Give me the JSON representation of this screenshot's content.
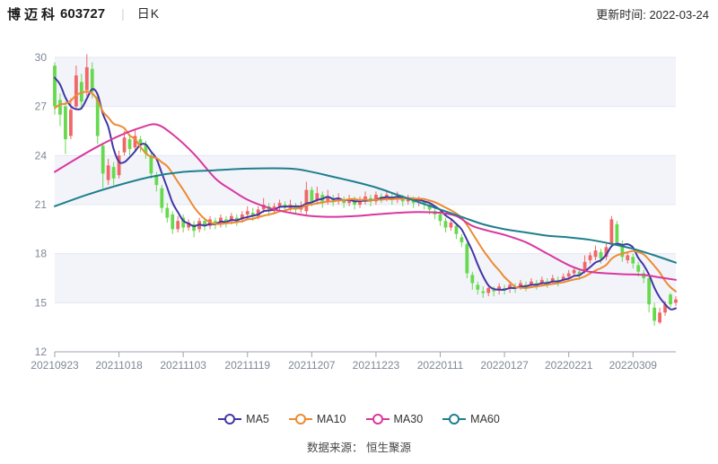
{
  "header": {
    "stock_name": "博迈科",
    "stock_code": "603727",
    "divider": "|",
    "period_label": "日K",
    "update_label": "更新时间: 2022-03-24"
  },
  "legend": [
    {
      "name": "MA5",
      "color": "#4336a5"
    },
    {
      "name": "MA10",
      "color": "#ee8a33"
    },
    {
      "name": "MA30",
      "color": "#d9379e"
    },
    {
      "name": "MA60",
      "color": "#1f7f8c"
    }
  ],
  "footer": {
    "source_label": "数据来源： 恒生聚源"
  },
  "chart_data": {
    "type": "candlestick",
    "title": "博迈科 603727 日K",
    "ylim": [
      12,
      30
    ],
    "y_ticks": [
      30,
      27,
      24,
      21,
      18,
      15,
      12
    ],
    "x_ticks": [
      {
        "idx": 0,
        "label": "20210923"
      },
      {
        "idx": 12,
        "label": "20211018"
      },
      {
        "idx": 24,
        "label": "20211103"
      },
      {
        "idx": 36,
        "label": "20211119"
      },
      {
        "idx": 48,
        "label": "20211207"
      },
      {
        "idx": 60,
        "label": "20211223"
      },
      {
        "idx": 72,
        "label": "20220111"
      },
      {
        "idx": 84,
        "label": "20220127"
      },
      {
        "idx": 96,
        "label": "20220221"
      },
      {
        "idx": 108,
        "label": "20220309"
      }
    ],
    "num_days": 117,
    "up_color": "#ef6767",
    "down_color": "#67d94f",
    "band_color": "#f2f4fa",
    "grid_color": "#e2e7f1",
    "axis_color": "#9aa3b2",
    "tick_label_color": "#7e8897",
    "candles": [
      [
        29.5,
        27.0,
        26.5,
        29.7
      ],
      [
        27.4,
        26.5,
        25.8,
        27.8
      ],
      [
        27.0,
        25.0,
        24.1,
        27.3
      ],
      [
        25.2,
        26.8,
        25.0,
        27.5
      ],
      [
        27.0,
        28.9,
        26.8,
        29.5
      ],
      [
        28.5,
        27.3,
        26.8,
        29.0
      ],
      [
        28.0,
        29.4,
        27.6,
        30.2
      ],
      [
        29.3,
        27.9,
        27.5,
        29.7
      ],
      [
        27.6,
        25.2,
        24.7,
        27.8
      ],
      [
        24.6,
        22.9,
        22.0,
        24.8
      ],
      [
        22.5,
        23.4,
        22.2,
        23.8
      ],
      [
        23.3,
        22.6,
        22.2,
        23.6
      ],
      [
        22.8,
        24.0,
        22.6,
        24.3
      ],
      [
        24.2,
        25.1,
        24.0,
        25.5
      ],
      [
        25.0,
        24.4,
        24.0,
        25.3
      ],
      [
        24.5,
        25.2,
        24.2,
        25.6
      ],
      [
        25.0,
        24.6,
        24.2,
        25.2
      ],
      [
        24.7,
        24.1,
        23.8,
        24.9
      ],
      [
        24.0,
        22.9,
        22.6,
        24.2
      ],
      [
        22.8,
        22.2,
        21.8,
        23.0
      ],
      [
        22.0,
        20.8,
        20.5,
        22.2
      ],
      [
        20.8,
        20.2,
        19.9,
        21.1
      ],
      [
        20.4,
        19.5,
        19.2,
        20.6
      ],
      [
        19.5,
        20.0,
        19.3,
        20.3
      ],
      [
        20.2,
        19.6,
        19.3,
        20.4
      ],
      [
        19.6,
        19.9,
        19.4,
        20.1
      ],
      [
        19.8,
        19.4,
        19.0,
        20.0
      ],
      [
        19.5,
        20.0,
        19.3,
        20.2
      ],
      [
        20.0,
        19.7,
        19.4,
        20.2
      ],
      [
        19.7,
        20.1,
        19.5,
        20.3
      ],
      [
        20.0,
        19.8,
        19.5,
        20.2
      ],
      [
        19.8,
        20.2,
        19.6,
        20.4
      ],
      [
        20.1,
        19.9,
        19.6,
        20.3
      ],
      [
        20.0,
        20.3,
        19.8,
        20.5
      ],
      [
        20.2,
        20.0,
        19.7,
        20.4
      ],
      [
        20.1,
        20.4,
        19.9,
        20.6
      ],
      [
        20.4,
        20.6,
        20.1,
        20.9
      ],
      [
        20.5,
        20.3,
        20.0,
        20.8
      ],
      [
        20.3,
        20.7,
        20.1,
        20.9
      ],
      [
        20.7,
        21.0,
        20.5,
        21.4
      ],
      [
        20.9,
        20.6,
        20.3,
        21.1
      ],
      [
        20.6,
        20.9,
        20.4,
        21.1
      ],
      [
        20.9,
        21.1,
        20.6,
        21.3
      ],
      [
        21.0,
        20.8,
        20.5,
        21.2
      ],
      [
        20.8,
        21.0,
        20.6,
        21.3
      ],
      [
        20.9,
        20.7,
        20.4,
        21.1
      ],
      [
        20.7,
        20.9,
        20.5,
        21.2
      ],
      [
        20.6,
        21.9,
        20.4,
        22.4
      ],
      [
        21.9,
        21.2,
        20.9,
        22.1
      ],
      [
        21.3,
        21.7,
        21.0,
        22.1
      ],
      [
        21.6,
        21.1,
        20.8,
        21.8
      ],
      [
        21.2,
        21.5,
        21.0,
        21.9
      ],
      [
        21.4,
        21.2,
        20.9,
        21.6
      ],
      [
        21.2,
        21.4,
        21.0,
        21.7
      ],
      [
        21.3,
        21.1,
        20.8,
        21.5
      ],
      [
        21.1,
        21.3,
        20.9,
        21.6
      ],
      [
        21.3,
        21.0,
        20.7,
        21.5
      ],
      [
        21.0,
        21.3,
        20.8,
        21.5
      ],
      [
        21.2,
        21.5,
        21.0,
        21.8
      ],
      [
        21.4,
        21.2,
        20.9,
        21.6
      ],
      [
        21.2,
        21.6,
        21.0,
        21.8
      ],
      [
        21.5,
        21.4,
        21.1,
        21.7
      ],
      [
        21.4,
        21.6,
        21.2,
        21.9
      ],
      [
        21.5,
        21.3,
        21.0,
        21.7
      ],
      [
        21.3,
        21.5,
        21.1,
        21.8
      ],
      [
        21.4,
        21.2,
        20.9,
        21.6
      ],
      [
        21.2,
        21.4,
        21.0,
        21.6
      ],
      [
        21.3,
        21.1,
        20.8,
        21.5
      ],
      [
        21.1,
        21.3,
        20.9,
        21.5
      ],
      [
        21.2,
        21.0,
        20.7,
        21.4
      ],
      [
        21.0,
        20.7,
        20.4,
        21.1
      ],
      [
        20.6,
        20.4,
        20.1,
        20.8
      ],
      [
        20.4,
        20.0,
        19.7,
        20.6
      ],
      [
        20.0,
        19.6,
        19.3,
        20.2
      ],
      [
        19.6,
        19.9,
        19.4,
        20.1
      ],
      [
        19.7,
        19.2,
        18.9,
        19.9
      ],
      [
        19.0,
        18.7,
        18.4,
        19.2
      ],
      [
        18.6,
        16.8,
        16.5,
        18.7
      ],
      [
        16.7,
        16.2,
        15.8,
        16.9
      ],
      [
        16.1,
        15.8,
        15.5,
        16.3
      ],
      [
        15.7,
        15.6,
        15.3,
        16.0
      ],
      [
        15.6,
        15.9,
        15.4,
        16.1
      ],
      [
        15.8,
        15.7,
        15.4,
        16.0
      ],
      [
        15.8,
        16.0,
        15.5,
        16.2
      ],
      [
        15.9,
        15.8,
        15.5,
        16.1
      ],
      [
        15.9,
        16.1,
        15.6,
        16.3
      ],
      [
        16.0,
        15.9,
        15.6,
        16.2
      ],
      [
        16.0,
        16.2,
        15.8,
        16.4
      ],
      [
        16.1,
        16.0,
        15.7,
        16.3
      ],
      [
        16.1,
        16.3,
        15.9,
        16.5
      ],
      [
        16.2,
        16.1,
        15.8,
        16.4
      ],
      [
        16.2,
        16.4,
        16.0,
        16.6
      ],
      [
        16.3,
        16.2,
        15.9,
        16.5
      ],
      [
        16.3,
        16.5,
        16.1,
        16.7
      ],
      [
        16.4,
        16.3,
        16.0,
        16.6
      ],
      [
        16.4,
        16.6,
        16.2,
        16.8
      ],
      [
        16.6,
        16.8,
        16.4,
        17.0
      ],
      [
        16.8,
        17.0,
        16.6,
        17.2
      ],
      [
        16.9,
        16.7,
        16.4,
        17.1
      ],
      [
        17.0,
        17.5,
        16.8,
        17.9
      ],
      [
        17.6,
        17.9,
        17.4,
        18.1
      ],
      [
        17.8,
        18.2,
        17.6,
        18.5
      ],
      [
        18.1,
        17.7,
        17.4,
        18.3
      ],
      [
        17.8,
        18.4,
        17.6,
        18.6
      ],
      [
        18.6,
        20.1,
        18.4,
        20.3
      ],
      [
        19.8,
        18.7,
        18.5,
        20.0
      ],
      [
        18.5,
        17.8,
        17.5,
        18.8
      ],
      [
        17.6,
        17.9,
        17.4,
        18.1
      ],
      [
        17.8,
        17.4,
        17.1,
        18.0
      ],
      [
        17.3,
        16.9,
        16.6,
        17.5
      ],
      [
        16.8,
        16.5,
        16.2,
        17.0
      ],
      [
        16.5,
        14.9,
        14.4,
        16.6
      ],
      [
        14.7,
        13.9,
        13.6,
        15.0
      ],
      [
        13.8,
        14.4,
        13.7,
        14.7
      ],
      [
        14.4,
        14.9,
        14.2,
        15.1
      ],
      [
        15.5,
        14.9,
        14.7,
        15.6
      ],
      [
        15.0,
        15.2,
        14.8,
        15.4
      ]
    ],
    "ma_seed_closes": [
      24.2,
      24.6,
      25.0,
      25.4,
      26.0,
      28.6,
      29.0,
      29.4,
      29.8
    ],
    "series": [
      {
        "name": "MA5",
        "color": "#4336a5",
        "compute_window": 5
      },
      {
        "name": "MA10",
        "color": "#ee8a33",
        "compute_window": 10
      },
      {
        "name": "MA30",
        "color": "#d9379e",
        "keypoints": [
          [
            0,
            23.0
          ],
          [
            4,
            23.8
          ],
          [
            8,
            24.55
          ],
          [
            12,
            25.2
          ],
          [
            16,
            25.7
          ],
          [
            19,
            25.9
          ],
          [
            22,
            25.3
          ],
          [
            26,
            24.1
          ],
          [
            30,
            22.6
          ],
          [
            33,
            21.9
          ],
          [
            36,
            21.3
          ],
          [
            40,
            20.8
          ],
          [
            44,
            20.5
          ],
          [
            48,
            20.3
          ],
          [
            52,
            20.25
          ],
          [
            56,
            20.3
          ],
          [
            60,
            20.4
          ],
          [
            64,
            20.5
          ],
          [
            68,
            20.55
          ],
          [
            72,
            20.5
          ],
          [
            75,
            20.3
          ],
          [
            78,
            19.7
          ],
          [
            81,
            19.4
          ],
          [
            84,
            19.15
          ],
          [
            88,
            18.7
          ],
          [
            92,
            18.0
          ],
          [
            96,
            17.3
          ],
          [
            99,
            16.95
          ],
          [
            102,
            16.82
          ],
          [
            106,
            16.75
          ],
          [
            110,
            16.7
          ],
          [
            113,
            16.55
          ],
          [
            116,
            16.4
          ]
        ]
      },
      {
        "name": "MA60",
        "color": "#1f7f8c",
        "keypoints": [
          [
            0,
            20.9
          ],
          [
            6,
            21.6
          ],
          [
            12,
            22.2
          ],
          [
            18,
            22.7
          ],
          [
            24,
            23.0
          ],
          [
            30,
            23.1
          ],
          [
            36,
            23.2
          ],
          [
            44,
            23.2
          ],
          [
            48,
            23.0
          ],
          [
            52,
            22.7
          ],
          [
            56,
            22.4
          ],
          [
            60,
            22.05
          ],
          [
            64,
            21.6
          ],
          [
            68,
            21.15
          ],
          [
            72,
            20.7
          ],
          [
            76,
            20.25
          ],
          [
            80,
            19.8
          ],
          [
            84,
            19.5
          ],
          [
            88,
            19.3
          ],
          [
            92,
            19.1
          ],
          [
            96,
            19.0
          ],
          [
            100,
            18.85
          ],
          [
            104,
            18.6
          ],
          [
            108,
            18.3
          ],
          [
            112,
            17.9
          ],
          [
            116,
            17.45
          ]
        ]
      }
    ]
  }
}
